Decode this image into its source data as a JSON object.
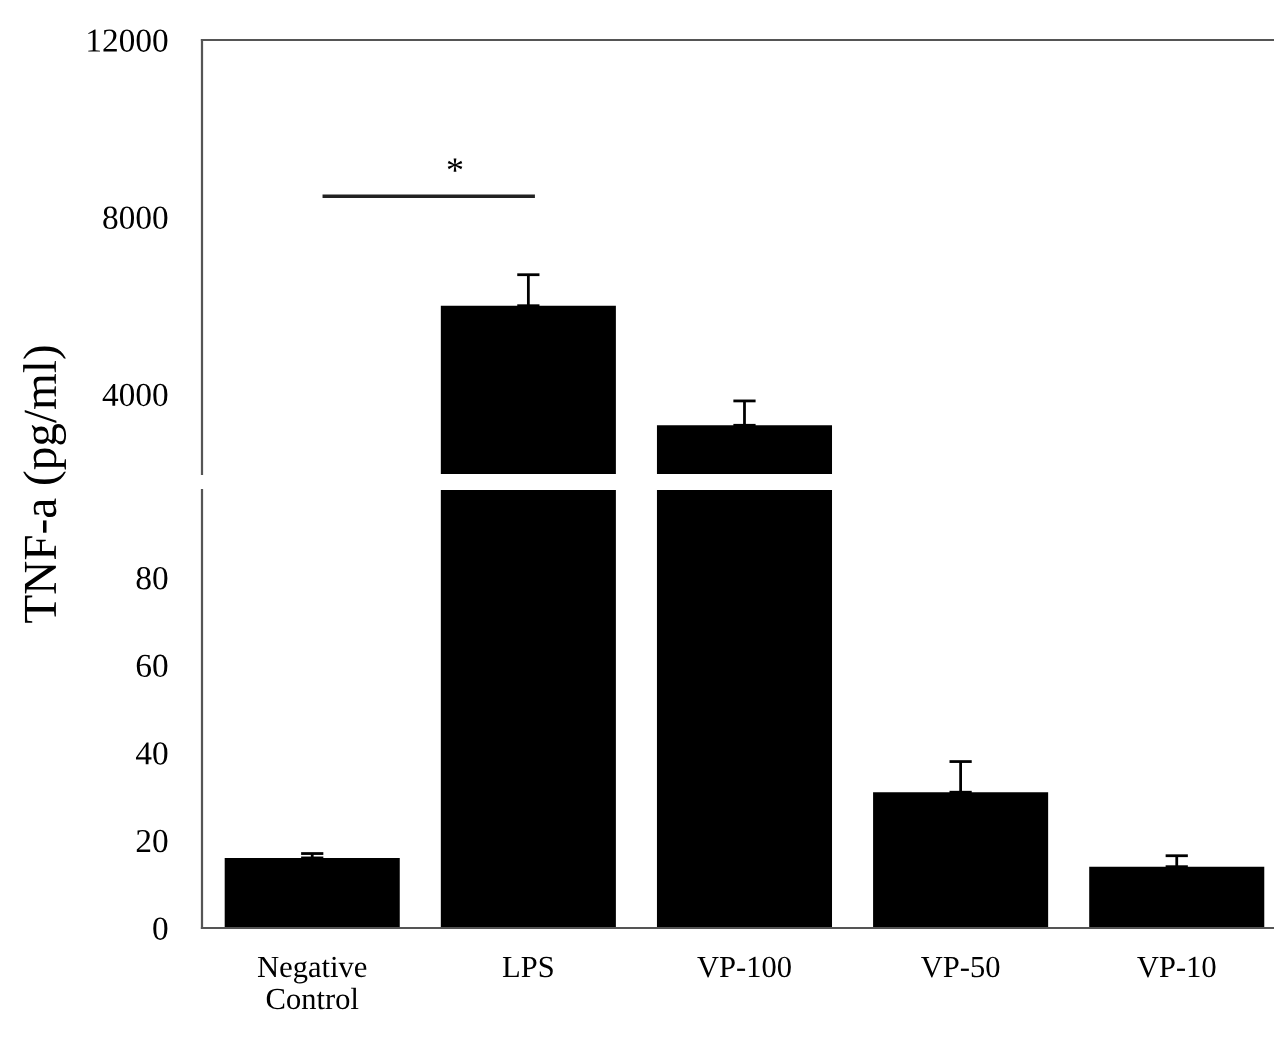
{
  "chart_data": [
    {
      "type": "bar",
      "categories": [
        null,
        null,
        null,
        null,
        null
      ],
      "values": [
        null,
        3800,
        1100,
        null,
        null
      ],
      "base": [
        null,
        2200,
        2200,
        null,
        null
      ],
      "errors": [
        null,
        700,
        550,
        null,
        null
      ],
      "color": "#000000",
      "ylim": [
        2200,
        12000
      ],
      "yticks": [
        4000,
        8000,
        12000
      ],
      "tick_labels": "y",
      "grid": false,
      "legend": false,
      "annotations": [
        "*"
      ]
    },
    {
      "type": "bar",
      "categories": [
        "Negative Control",
        "LPS",
        "VP-100",
        "VP-50",
        "VP-10"
      ],
      "values": [
        16,
        100,
        100,
        31,
        14
      ],
      "errors": [
        1,
        null,
        null,
        7,
        2.5
      ],
      "color": "#000000",
      "ylim": [
        0,
        100
      ],
      "yticks": [
        0,
        20,
        40,
        60,
        80
      ],
      "ylabel": "TNF-a (pg/ml)",
      "grid": false,
      "legend": false
    }
  ]
}
